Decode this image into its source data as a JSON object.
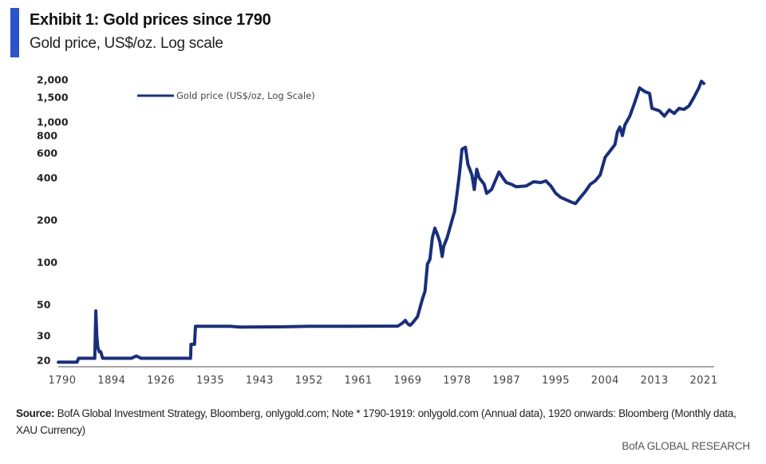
{
  "header": {
    "title": "Exhibit 1:  Gold prices since 1790",
    "subtitle": "Gold price, US$/oz. Log scale"
  },
  "footer": {
    "source_label": "Source:",
    "source_text": " BofA Global Investment Strategy, Bloomberg, onlygold.com;  Note * 1790-1919:  onlygold.com  (Annual data), 1920 onwards: Bloomberg (Monthly data, XAU Currency)",
    "brand": "BofA GLOBAL RESEARCH"
  },
  "colors": {
    "accent": "#2a55c9",
    "series": "#1a2f7a",
    "axis": "#888888"
  },
  "chart_data": {
    "type": "line",
    "title": "Exhibit 1:  Gold prices since 1790",
    "subtitle": "Gold price, US$/oz. Log scale",
    "xlabel": "",
    "ylabel": "",
    "yscale": "log",
    "ylim": [
      20,
      2000
    ],
    "yticks": [
      20,
      30,
      50,
      100,
      200,
      400,
      600,
      800,
      1000,
      1500,
      2000
    ],
    "ytick_labels": [
      "20",
      "30",
      "50",
      "100",
      "200",
      "400",
      "600",
      "800",
      "1,000",
      "1,500",
      "2,000"
    ],
    "xtick_labels": [
      "1790",
      "1894",
      "1926",
      "1935",
      "1943",
      "1952",
      "1961",
      "1969",
      "1978",
      "1987",
      "1995",
      "2004",
      "2013",
      "2021"
    ],
    "x_note": "x values are positions on the evenly spaced tick-label axis (0 = first label '1790', 13 = last label '2021')",
    "grid": false,
    "legend": {
      "entries": [
        "Gold price (US$/oz, Log Scale)"
      ],
      "position": "top-left"
    },
    "series": [
      {
        "name": "Gold price (US$/oz, Log Scale)",
        "points": [
          [
            -0.08,
            19.4
          ],
          [
            0.3,
            19.4
          ],
          [
            0.33,
            20.7
          ],
          [
            0.4,
            20.7
          ],
          [
            0.45,
            20.7
          ],
          [
            0.66,
            20.7
          ],
          [
            0.68,
            45
          ],
          [
            0.7,
            30
          ],
          [
            0.72,
            25
          ],
          [
            0.75,
            23
          ],
          [
            0.78,
            23
          ],
          [
            0.82,
            20.7
          ],
          [
            1.0,
            20.7
          ],
          [
            1.4,
            20.7
          ],
          [
            1.5,
            21.5
          ],
          [
            1.6,
            20.7
          ],
          [
            1.9,
            20.7
          ],
          [
            2.6,
            20.7
          ],
          [
            2.61,
            26
          ],
          [
            2.68,
            26
          ],
          [
            2.7,
            35
          ],
          [
            2.9,
            35
          ],
          [
            3.4,
            35
          ],
          [
            3.6,
            34.5
          ],
          [
            4.5,
            34.7
          ],
          [
            5.0,
            35
          ],
          [
            5.8,
            35
          ],
          [
            6.8,
            35.1
          ],
          [
            6.9,
            37
          ],
          [
            6.95,
            38.5
          ],
          [
            7.0,
            36.5
          ],
          [
            7.05,
            35.5
          ],
          [
            7.1,
            37
          ],
          [
            7.2,
            41
          ],
          [
            7.3,
            55
          ],
          [
            7.35,
            62
          ],
          [
            7.4,
            97
          ],
          [
            7.45,
            105
          ],
          [
            7.5,
            150
          ],
          [
            7.55,
            175
          ],
          [
            7.6,
            158
          ],
          [
            7.65,
            140
          ],
          [
            7.7,
            110
          ],
          [
            7.73,
            130
          ],
          [
            7.8,
            150
          ],
          [
            7.9,
            200
          ],
          [
            7.95,
            230
          ],
          [
            8.0,
            310
          ],
          [
            8.05,
            430
          ],
          [
            8.1,
            640
          ],
          [
            8.17,
            660
          ],
          [
            8.22,
            500
          ],
          [
            8.3,
            420
          ],
          [
            8.35,
            330
          ],
          [
            8.4,
            460
          ],
          [
            8.45,
            400
          ],
          [
            8.55,
            360
          ],
          [
            8.6,
            310
          ],
          [
            8.7,
            330
          ],
          [
            8.8,
            400
          ],
          [
            8.85,
            440
          ],
          [
            8.95,
            390
          ],
          [
            9.0,
            370
          ],
          [
            9.1,
            360
          ],
          [
            9.2,
            345
          ],
          [
            9.4,
            350
          ],
          [
            9.55,
            375
          ],
          [
            9.7,
            370
          ],
          [
            9.8,
            380
          ],
          [
            9.9,
            350
          ],
          [
            10.0,
            310
          ],
          [
            10.1,
            290
          ],
          [
            10.2,
            280
          ],
          [
            10.3,
            270
          ],
          [
            10.4,
            262
          ],
          [
            10.5,
            290
          ],
          [
            10.6,
            320
          ],
          [
            10.7,
            360
          ],
          [
            10.8,
            380
          ],
          [
            10.9,
            420
          ],
          [
            11.0,
            560
          ],
          [
            11.1,
            620
          ],
          [
            11.2,
            690
          ],
          [
            11.25,
            850
          ],
          [
            11.3,
            920
          ],
          [
            11.35,
            800
          ],
          [
            11.4,
            950
          ],
          [
            11.5,
            1100
          ],
          [
            11.6,
            1380
          ],
          [
            11.7,
            1750
          ],
          [
            11.8,
            1650
          ],
          [
            11.9,
            1600
          ],
          [
            11.95,
            1250
          ],
          [
            12.1,
            1200
          ],
          [
            12.2,
            1100
          ],
          [
            12.3,
            1220
          ],
          [
            12.4,
            1150
          ],
          [
            12.5,
            1250
          ],
          [
            12.6,
            1230
          ],
          [
            12.7,
            1300
          ],
          [
            12.8,
            1500
          ],
          [
            12.9,
            1750
          ],
          [
            12.95,
            1950
          ],
          [
            13.0,
            1880
          ]
        ]
      }
    ]
  }
}
